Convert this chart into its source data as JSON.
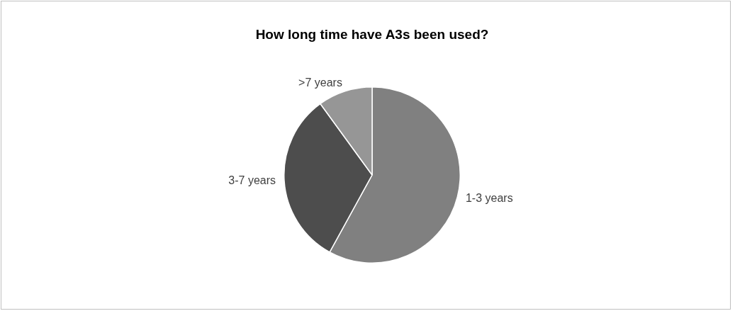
{
  "chart_data": {
    "type": "pie",
    "title": "How long time have A3s been used?",
    "categories": [
      "1-3 years",
      "3-7 years",
      ">7 years"
    ],
    "values": [
      58,
      32,
      10
    ],
    "colors": [
      "#808080",
      "#4d4d4d",
      "#969696"
    ],
    "legend": false
  }
}
